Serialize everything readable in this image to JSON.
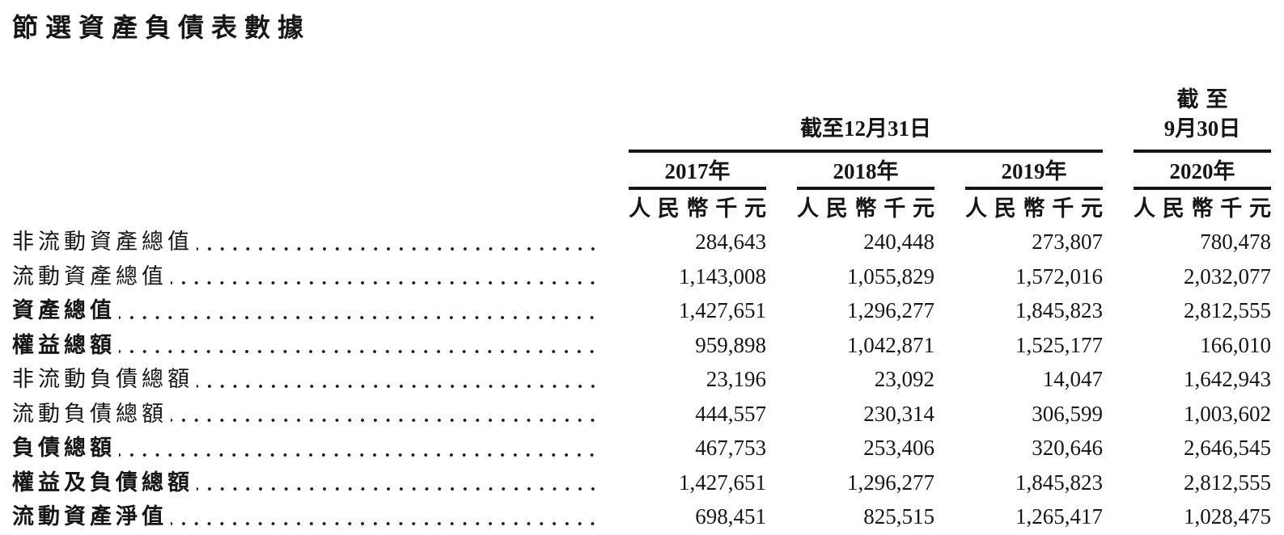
{
  "page": {
    "title": "節選資產負債表數據"
  },
  "table": {
    "period_headers": {
      "dec31": "截至12月31日",
      "sep30_line1": "截至",
      "sep30_line2": "9月30日"
    },
    "year_headers": [
      "2017年",
      "2018年",
      "2019年",
      "2020年"
    ],
    "unit_headers": [
      "人民幣千元",
      "人民幣千元",
      "人民幣千元",
      "人民幣千元"
    ],
    "rows": [
      {
        "label": "非流動資產總值",
        "bold": false,
        "values": [
          "284,643",
          "240,448",
          "273,807",
          "780,478"
        ]
      },
      {
        "label": "流動資產總值",
        "bold": false,
        "values": [
          "1,143,008",
          "1,055,829",
          "1,572,016",
          "2,032,077"
        ]
      },
      {
        "label": "資產總值",
        "bold": true,
        "values": [
          "1,427,651",
          "1,296,277",
          "1,845,823",
          "2,812,555"
        ]
      },
      {
        "label": "權益總額",
        "bold": true,
        "values": [
          "959,898",
          "1,042,871",
          "1,525,177",
          "166,010"
        ]
      },
      {
        "label": "非流動負債總額",
        "bold": false,
        "values": [
          "23,196",
          "23,092",
          "14,047",
          "1,642,943"
        ]
      },
      {
        "label": "流動負債總額",
        "bold": false,
        "values": [
          "444,557",
          "230,314",
          "306,599",
          "1,003,602"
        ]
      },
      {
        "label": "負債總額",
        "bold": true,
        "values": [
          "467,753",
          "253,406",
          "320,646",
          "2,646,545"
        ]
      },
      {
        "label": "權益及負債總額",
        "bold": true,
        "values": [
          "1,427,651",
          "1,296,277",
          "1,845,823",
          "2,812,555"
        ]
      },
      {
        "label": "流動資產淨值",
        "bold": true,
        "values": [
          "698,451",
          "825,515",
          "1,265,417",
          "1,028,475"
        ]
      }
    ]
  }
}
